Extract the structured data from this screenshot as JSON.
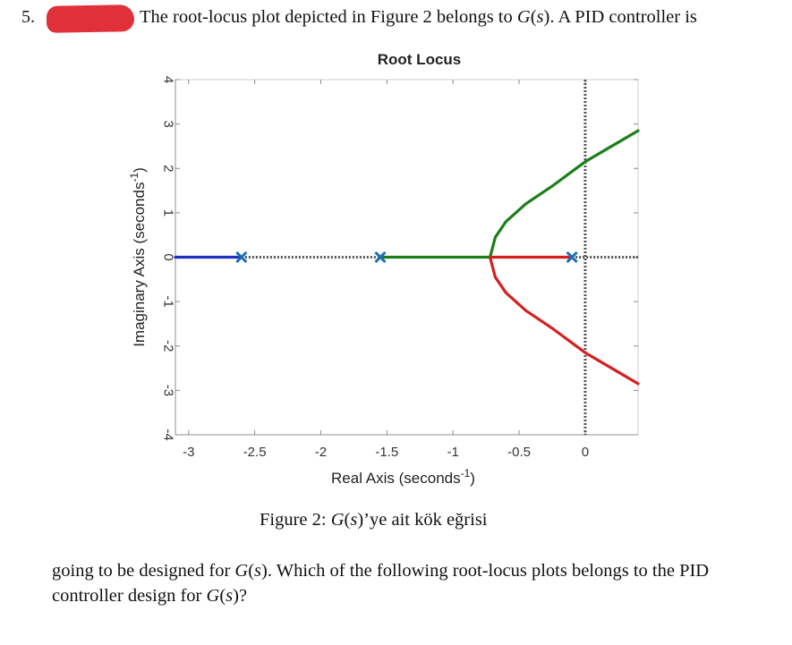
{
  "question": {
    "number": "5.",
    "line1_prefix": "The root-locus plot depicted in Figure 2 belongs to ",
    "line1_G": "G",
    "line1_s": "s",
    "line1_suffix": ". A PID controller is",
    "para_prefix": "going to be designed for ",
    "para_G": "G",
    "para_s": "s",
    "para_mid": ". Which of the following root-locus plots belongs to the PID controller design for ",
    "para_G2": "G",
    "para_s2": "s",
    "para_suffix": "?"
  },
  "caption": {
    "prefix": "Figure 2: ",
    "G": "G",
    "s": "s",
    "suffix": "’ye ait kök eğrisi"
  },
  "colors": {
    "blue": "#1f2fbf",
    "green": "#1a7f1a",
    "red": "#d42020",
    "pole": "#1a6fb0",
    "asymptote": "#555555",
    "redaction": "#e0303a"
  },
  "chart_data": {
    "type": "line",
    "title": "Root Locus",
    "xlabel": "Real Axis (seconds",
    "xlabel_sup": "-1",
    "xlabel_close": ")",
    "ylabel": "Imaginary Axis (seconds",
    "ylabel_sup": "-1",
    "ylabel_close": ")",
    "xlim": [
      -3.1,
      0.4
    ],
    "ylim": [
      -4,
      4
    ],
    "xticks": [
      -3,
      -2.5,
      -2,
      -1.5,
      -1,
      -0.5,
      0
    ],
    "xtick_labels": [
      "-3",
      "-2.5",
      "-2",
      "-1.5",
      "-1",
      "-0.5",
      "0"
    ],
    "yticks": [
      4,
      3,
      2,
      1,
      0,
      -1,
      -2,
      -3,
      -4
    ],
    "ytick_labels": [
      "4",
      "3",
      "2",
      "1",
      "0",
      "-1",
      "-2",
      "-3",
      "-4"
    ],
    "grid": false,
    "poles": [
      [
        -2.6,
        0
      ],
      [
        -1.55,
        0
      ],
      [
        -0.1,
        0
      ]
    ],
    "breakaway": -0.72,
    "asymptote_x": 0,
    "series": [
      {
        "color": "blue",
        "x": [
          -3.1,
          -2.6
        ],
        "y": [
          0,
          0
        ]
      },
      {
        "color": "green",
        "x": [
          -1.55,
          -0.72
        ],
        "y": [
          0,
          0
        ]
      },
      {
        "color": "red",
        "x": [
          -0.1,
          -0.72
        ],
        "y": [
          0,
          0
        ]
      },
      {
        "color": "green",
        "x": [
          -0.72,
          -0.68,
          -0.6,
          -0.45,
          -0.25,
          0.0,
          0.2,
          0.4
        ],
        "y": [
          0,
          0.45,
          0.8,
          1.2,
          1.6,
          2.15,
          2.5,
          2.85
        ]
      },
      {
        "color": "red",
        "x": [
          -0.72,
          -0.68,
          -0.6,
          -0.45,
          -0.25,
          0.0,
          0.2,
          0.4
        ],
        "y": [
          0,
          -0.45,
          -0.8,
          -1.2,
          -1.6,
          -2.15,
          -2.5,
          -2.85
        ]
      }
    ],
    "dotted_segments": [
      {
        "x": [
          -2.6,
          -1.55
        ],
        "y": [
          0,
          0
        ]
      },
      {
        "x": [
          -0.1,
          0.4
        ],
        "y": [
          0,
          0
        ]
      }
    ]
  }
}
